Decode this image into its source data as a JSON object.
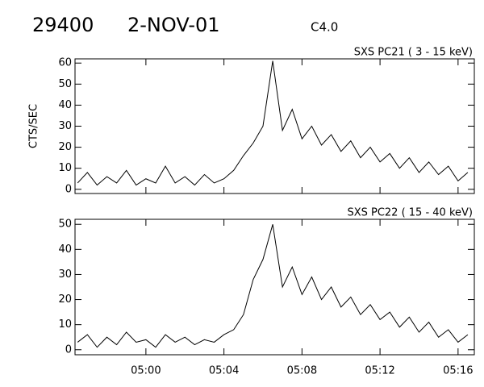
{
  "header": {
    "id": "29400",
    "date": "2-NOV-01",
    "class": "C4.0"
  },
  "chart_data": [
    {
      "type": "line",
      "title": "SXS PC21  (  3 - 15 keV)",
      "y_label": "CTS/SEC",
      "x": [
        "04:56:30",
        "04:57:00",
        "04:57:30",
        "04:58:00",
        "04:58:30",
        "04:59:00",
        "04:59:30",
        "05:00:00",
        "05:00:30",
        "05:01:00",
        "05:01:30",
        "05:02:00",
        "05:02:30",
        "05:03:00",
        "05:03:30",
        "05:04:00",
        "05:04:30",
        "05:05:00",
        "05:05:30",
        "05:06:00",
        "05:06:30",
        "05:07:00",
        "05:07:30",
        "05:08:00",
        "05:08:30",
        "05:09:00",
        "05:09:30",
        "05:10:00",
        "05:10:30",
        "05:11:00",
        "05:11:30",
        "05:12:00",
        "05:12:30",
        "05:13:00",
        "05:13:30",
        "05:14:00",
        "05:14:30",
        "05:15:00",
        "05:15:30",
        "05:16:00",
        "05:16:30"
      ],
      "series": [
        {
          "color": "#000000",
          "values": [
            3,
            8,
            2,
            6,
            3,
            9,
            2,
            5,
            3,
            11,
            3,
            6,
            2,
            7,
            3,
            5,
            9,
            16,
            22,
            30,
            61,
            28,
            38,
            24,
            30,
            21,
            26,
            18,
            23,
            15,
            20,
            13,
            17,
            10,
            15,
            8,
            13,
            7,
            11,
            4,
            8
          ]
        }
      ],
      "xlim": [
        "04:56:22",
        "05:16:50"
      ],
      "xticks": [
        "05:00",
        "05:04",
        "05:08",
        "05:12",
        "05:16"
      ],
      "ylim": [
        -2,
        62
      ],
      "yticks": [
        0,
        10,
        20,
        30,
        40,
        50,
        60
      ]
    },
    {
      "type": "line",
      "title": "SXS PC22  ( 15 - 40 keV)",
      "x": [
        "04:56:30",
        "04:57:00",
        "04:57:30",
        "04:58:00",
        "04:58:30",
        "04:59:00",
        "04:59:30",
        "05:00:00",
        "05:00:30",
        "05:01:00",
        "05:01:30",
        "05:02:00",
        "05:02:30",
        "05:03:00",
        "05:03:30",
        "05:04:00",
        "05:04:30",
        "05:05:00",
        "05:05:30",
        "05:06:00",
        "05:06:30",
        "05:07:00",
        "05:07:30",
        "05:08:00",
        "05:08:30",
        "05:09:00",
        "05:09:30",
        "05:10:00",
        "05:10:30",
        "05:11:00",
        "05:11:30",
        "05:12:00",
        "05:12:30",
        "05:13:00",
        "05:13:30",
        "05:14:00",
        "05:14:30",
        "05:15:00",
        "05:15:30",
        "05:16:00",
        "05:16:30"
      ],
      "series": [
        {
          "color": "#000000",
          "values": [
            3,
            6,
            1,
            5,
            2,
            7,
            3,
            4,
            1,
            6,
            3,
            5,
            2,
            4,
            3,
            6,
            8,
            14,
            28,
            36,
            50,
            25,
            33,
            22,
            29,
            20,
            25,
            17,
            21,
            14,
            18,
            12,
            15,
            9,
            13,
            7,
            11,
            5,
            8,
            3,
            6
          ]
        }
      ],
      "xlim": [
        "04:56:22",
        "05:16:50"
      ],
      "xticks": [
        "05:00",
        "05:04",
        "05:08",
        "05:12",
        "05:16"
      ],
      "xtick_labels": true,
      "ylim": [
        -2,
        52
      ],
      "yticks": [
        0,
        10,
        20,
        30,
        40,
        50
      ]
    }
  ]
}
